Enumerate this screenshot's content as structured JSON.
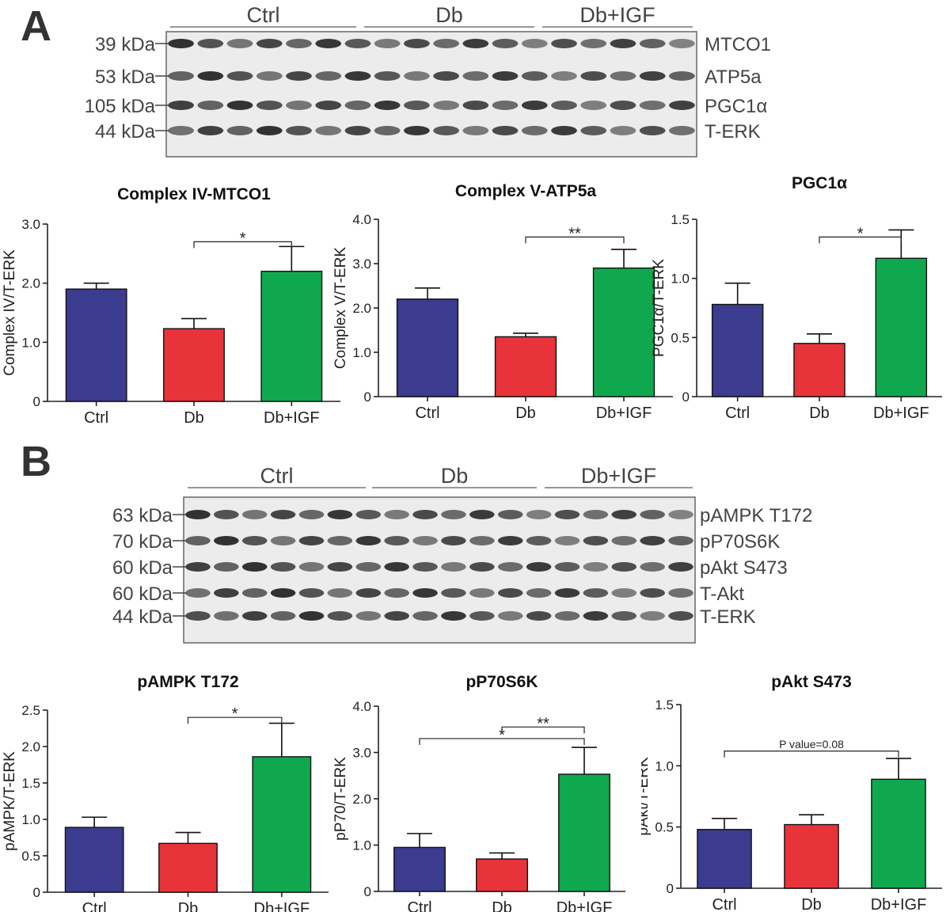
{
  "panels": [
    {
      "letter": "A"
    },
    {
      "letter": "B"
    }
  ],
  "blots": [
    {
      "groups": [
        "Ctrl",
        "Db",
        "Db+IGF"
      ],
      "rows": [
        {
          "label": "MTCO1",
          "mw": "39 kDa"
        },
        {
          "label": "ATP5a",
          "mw": "53 kDa"
        },
        {
          "label": "PGC1α",
          "mw": "105 kDa"
        },
        {
          "label": "T-ERK",
          "mw": "44 kDa"
        }
      ]
    },
    {
      "groups": [
        "Ctrl",
        "Db",
        "Db+IGF"
      ],
      "rows": [
        {
          "label": "pAMPK T172",
          "mw": "63 kDa"
        },
        {
          "label": "pP70S6K",
          "mw": "70 kDa"
        },
        {
          "label": "pAkt S473",
          "mw": "60 kDa"
        },
        {
          "label": "T-Akt",
          "mw": "60 kDa"
        },
        {
          "label": "T-ERK",
          "mw": "44 kDa"
        }
      ]
    }
  ],
  "colors": {
    "Ctrl": "#3b3b8f",
    "Db": "#e8333b",
    "Db+IGF": "#10a84f"
  },
  "chart_data": [
    {
      "type": "bar",
      "title": "Complex IV-MTCO1",
      "ylabel": "Complex IV/T-ERK",
      "categories": [
        "Ctrl",
        "Db",
        "Db+IGF"
      ],
      "values": [
        1.9,
        1.23,
        2.2
      ],
      "errors": [
        0.1,
        0.17,
        0.42
      ],
      "ylim": [
        0,
        3.0
      ],
      "ticks": [
        0,
        1.0,
        2.0,
        3.0
      ],
      "tick_labels": [
        "0",
        "1.0",
        "2.0",
        "3.0"
      ],
      "annotations": [
        {
          "from": 1,
          "to": 2,
          "y": 2.7,
          "label": "*"
        }
      ]
    },
    {
      "type": "bar",
      "title": "Complex V-ATP5a",
      "ylabel": "Complex V/T-ERK",
      "categories": [
        "Ctrl",
        "Db",
        "Db+IGF"
      ],
      "values": [
        2.2,
        1.35,
        2.9
      ],
      "errors": [
        0.25,
        0.08,
        0.42
      ],
      "ylim": [
        0,
        4.0
      ],
      "ticks": [
        0,
        1.0,
        2.0,
        3.0,
        4.0
      ],
      "tick_labels": [
        "0",
        "1.0",
        "2.0",
        "3.0",
        "4.0"
      ],
      "annotations": [
        {
          "from": 1,
          "to": 2,
          "y": 3.6,
          "label": "**"
        }
      ]
    },
    {
      "type": "bar",
      "title": "PGC1α",
      "ylabel": "PGC1α/T-ERK",
      "categories": [
        "Ctrl",
        "Db",
        "Db+IGF"
      ],
      "values": [
        0.78,
        0.45,
        1.17
      ],
      "errors": [
        0.18,
        0.08,
        0.24
      ],
      "ylim": [
        0,
        1.5
      ],
      "ticks": [
        0,
        0.5,
        1.0,
        1.5
      ],
      "tick_labels": [
        "0",
        "0.5",
        "1.0",
        "1.5"
      ],
      "annotations": [
        {
          "from": 1,
          "to": 2,
          "y": 1.35,
          "label": "*"
        }
      ]
    },
    {
      "type": "bar",
      "title": "pAMPK T172",
      "ylabel": "pAMPK/T-ERK",
      "categories": [
        "Ctrl",
        "Db",
        "Db+IGF"
      ],
      "values": [
        0.89,
        0.67,
        1.86
      ],
      "errors": [
        0.14,
        0.15,
        0.46
      ],
      "ylim": [
        0,
        2.5
      ],
      "ticks": [
        0,
        0.5,
        1.0,
        1.5,
        2.0,
        2.5
      ],
      "tick_labels": [
        "0",
        "0.5",
        "1.0",
        "1.5",
        "2.0",
        "2.5"
      ],
      "annotations": [
        {
          "from": 1,
          "to": 2,
          "y": 2.4,
          "label": "*"
        }
      ]
    },
    {
      "type": "bar",
      "title": "pP70S6K",
      "ylabel": "pP70/T-ERK",
      "categories": [
        "Ctrl",
        "Db",
        "Db+IGF"
      ],
      "values": [
        0.95,
        0.7,
        2.53
      ],
      "errors": [
        0.3,
        0.13,
        0.58
      ],
      "ylim": [
        0,
        4.0
      ],
      "ticks": [
        0,
        1.0,
        2.0,
        3.0,
        4.0
      ],
      "tick_labels": [
        "0",
        "1.0",
        "2.0",
        "3.0",
        "4.0"
      ],
      "annotations": [
        {
          "from": 0,
          "to": 2,
          "y": 3.3,
          "label": "*"
        },
        {
          "from": 1,
          "to": 2,
          "y": 3.55,
          "label": "**"
        }
      ]
    },
    {
      "type": "bar",
      "title": "pAkt S473",
      "ylabel": "pAkt/T-ERK",
      "categories": [
        "Ctrl",
        "Db",
        "Db+IGF"
      ],
      "values": [
        0.48,
        0.52,
        0.89
      ],
      "errors": [
        0.09,
        0.08,
        0.17
      ],
      "ylim": [
        0,
        1.5
      ],
      "ticks": [
        0,
        0.5,
        1.0,
        1.5
      ],
      "tick_labels": [
        "0",
        "0.5",
        "1.0",
        "1.5"
      ],
      "annotations": [
        {
          "from": 0,
          "to": 2,
          "y": 1.12,
          "label": "P value=0.08"
        }
      ]
    }
  ]
}
